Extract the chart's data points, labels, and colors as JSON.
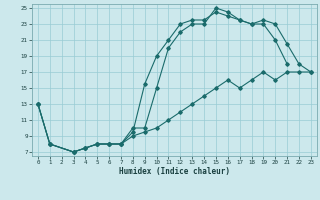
{
  "xlabel": "Humidex (Indice chaleur)",
  "bg_color": "#cce8ec",
  "grid_color": "#99ccd4",
  "line_color": "#1a6b6b",
  "xlim": [
    -0.5,
    23.5
  ],
  "ylim": [
    6.5,
    25.5
  ],
  "xticks": [
    0,
    1,
    2,
    3,
    4,
    5,
    6,
    7,
    8,
    9,
    10,
    11,
    12,
    13,
    14,
    15,
    16,
    17,
    18,
    19,
    20,
    21,
    22,
    23
  ],
  "yticks": [
    7,
    9,
    11,
    13,
    15,
    17,
    19,
    21,
    23,
    25
  ],
  "line1": {
    "x": [
      0,
      1,
      3,
      4,
      5,
      6,
      7,
      8,
      9,
      10,
      11,
      12,
      13,
      14,
      15,
      16,
      17,
      18,
      19,
      20,
      21
    ],
    "y": [
      13,
      8,
      7,
      7.5,
      8,
      8,
      8,
      10,
      10,
      15,
      20,
      22,
      23,
      23,
      25,
      24.5,
      23.5,
      23,
      23,
      21,
      18
    ]
  },
  "line2": {
    "x": [
      0,
      1,
      3,
      4,
      5,
      6,
      7,
      8,
      9,
      10,
      11,
      12,
      13,
      14,
      15,
      16,
      17,
      18,
      19,
      20,
      21,
      22,
      23
    ],
    "y": [
      13,
      8,
      7,
      7.5,
      8,
      8,
      8,
      9.5,
      15.5,
      19,
      21,
      23,
      23.5,
      23.5,
      24.5,
      24,
      23.5,
      23,
      23.5,
      23,
      20.5,
      18,
      17
    ]
  },
  "line3": {
    "x": [
      0,
      1,
      3,
      4,
      5,
      6,
      7,
      8,
      9,
      10,
      11,
      12,
      13,
      14,
      15,
      16,
      17,
      18,
      19,
      20,
      21,
      22,
      23
    ],
    "y": [
      13,
      8,
      7,
      7.5,
      8,
      8,
      8,
      9,
      9.5,
      10,
      11,
      12,
      13,
      14,
      15,
      16,
      15,
      16,
      17,
      16,
      17,
      17,
      17
    ]
  }
}
